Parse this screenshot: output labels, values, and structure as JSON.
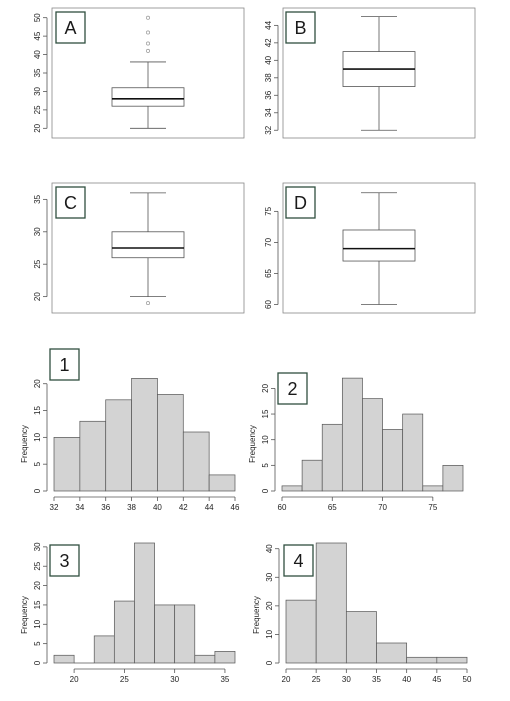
{
  "chart_data": [
    {
      "type": "boxplot",
      "panel": "A",
      "stats": {
        "min": 20,
        "q1": 26,
        "median": 28,
        "q3": 31,
        "max": 38,
        "outliers": [
          41,
          43,
          46,
          50
        ]
      },
      "ylim": [
        19,
        51
      ],
      "yticks": [
        20,
        25,
        30,
        35,
        40,
        45,
        50
      ]
    },
    {
      "type": "boxplot",
      "panel": "B",
      "stats": {
        "min": 32,
        "q1": 37,
        "median": 39,
        "q3": 41,
        "max": 45,
        "outliers": []
      },
      "ylim": [
        31.8,
        45.3
      ],
      "yticks": [
        32,
        34,
        36,
        38,
        40,
        42,
        44
      ]
    },
    {
      "type": "boxplot",
      "panel": "C",
      "stats": {
        "min": 20,
        "q1": 26,
        "median": 27.5,
        "q3": 30,
        "max": 36,
        "outliers": [
          19
        ]
      },
      "ylim": [
        18.4,
        36.6
      ],
      "yticks": [
        20,
        25,
        30,
        35
      ]
    },
    {
      "type": "boxplot",
      "panel": "D",
      "stats": {
        "min": 60,
        "q1": 67,
        "median": 69,
        "q3": 72,
        "max": 78,
        "outliers": []
      },
      "ylim": [
        59.6,
        78.6
      ],
      "yticks": [
        60,
        65,
        70,
        75
      ]
    },
    {
      "type": "histogram",
      "panel": "1",
      "bin_edges": [
        32,
        34,
        36,
        38,
        40,
        42,
        44,
        46
      ],
      "values": [
        10,
        13,
        17,
        21,
        18,
        11,
        3
      ],
      "xlim": [
        32,
        46
      ],
      "xticks": [
        32,
        34,
        36,
        38,
        40,
        42,
        44,
        46
      ],
      "ylim": [
        0,
        22
      ],
      "yticks": [
        0,
        5,
        10,
        15,
        20
      ],
      "ylabel": "Frequency"
    },
    {
      "type": "histogram",
      "panel": "2",
      "bin_edges": [
        60,
        62,
        64,
        66,
        68,
        70,
        72,
        74,
        76,
        78
      ],
      "values": [
        1,
        6,
        13,
        22,
        18,
        12,
        15,
        1,
        5
      ],
      "xlim": [
        60,
        78
      ],
      "xticks": [
        60,
        65,
        70,
        75
      ],
      "ylim": [
        0,
        23
      ],
      "yticks": [
        0,
        5,
        10,
        15,
        20
      ],
      "ylabel": "Frequency"
    },
    {
      "type": "histogram",
      "panel": "3",
      "bin_edges": [
        18,
        20,
        22,
        24,
        26,
        28,
        30,
        32,
        34,
        36
      ],
      "values": [
        2,
        0,
        7,
        16,
        31,
        15,
        15,
        2,
        3
      ],
      "xlim": [
        18,
        36
      ],
      "xticks": [
        20,
        25,
        30,
        35
      ],
      "ylim": [
        0,
        31
      ],
      "yticks": [
        0,
        5,
        10,
        15,
        20,
        25,
        30
      ],
      "ylabel": "Frequency"
    },
    {
      "type": "histogram",
      "panel": "4",
      "bin_edges": [
        20,
        25,
        30,
        35,
        40,
        45,
        50
      ],
      "values": [
        22,
        42,
        18,
        7,
        2,
        2
      ],
      "xlim": [
        20,
        50
      ],
      "xticks": [
        20,
        25,
        30,
        35,
        40,
        45,
        50
      ],
      "ylim": [
        0,
        42
      ],
      "yticks": [
        0,
        10,
        20,
        30,
        40
      ],
      "ylabel": "Frequency"
    }
  ]
}
